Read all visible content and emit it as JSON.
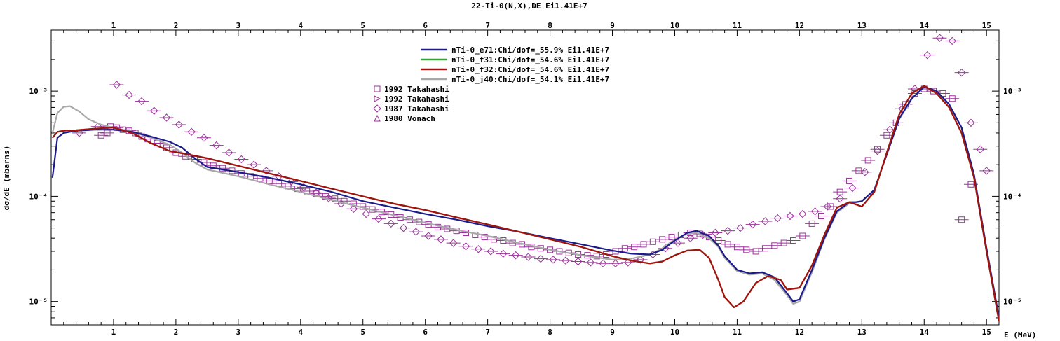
{
  "chart_data": {
    "type": "line",
    "title": "22-Ti-0(N,X),DE Ei1.41E+7",
    "xlabel": "E (MeV)",
    "ylabel": "dσ/dE (mbarns)",
    "xlim": [
      0,
      15.2
    ],
    "ylim": [
      6e-06,
      0.0038
    ],
    "yscale": "log",
    "x_ticks": [
      "1",
      "2",
      "3",
      "4",
      "5",
      "6",
      "7",
      "8",
      "9",
      "10",
      "11",
      "12",
      "13",
      "14",
      "15"
    ],
    "y_ticks": [
      "10⁻⁵",
      "10⁻⁴",
      "10⁻³"
    ],
    "legend_position": "top-center",
    "series": [
      {
        "name": "nTi-0_e71:Chi/dof=_55.9% Ei1.41E+7",
        "color": "#1a1a8c",
        "x": [
          0.02,
          0.1,
          0.2,
          0.4,
          0.7,
          1.0,
          1.3,
          1.6,
          1.9,
          2.1,
          2.3,
          2.5,
          3.0,
          3.5,
          4.0,
          4.5,
          5.0,
          5.5,
          6.0,
          6.5,
          7.0,
          7.5,
          8.0,
          8.5,
          9.0,
          9.3,
          9.6,
          9.8,
          10.0,
          10.2,
          10.35,
          10.55,
          10.7,
          10.8,
          11.0,
          11.2,
          11.4,
          11.6,
          11.8,
          11.9,
          12.0,
          12.2,
          12.4,
          12.6,
          12.8,
          12.9,
          13.0,
          13.2,
          13.4,
          13.6,
          13.8,
          14.0,
          14.2,
          14.4,
          14.6,
          14.8,
          15.0,
          15.2
        ],
        "values": [
          0.00015,
          0.00036,
          0.0004,
          0.00042,
          0.00043,
          0.00043,
          0.00041,
          0.00037,
          0.00033,
          0.00029,
          0.00023,
          0.00019,
          0.00017,
          0.00015,
          0.00013,
          0.00011,
          9e-05,
          7.8e-05,
          6.8e-05,
          6e-05,
          5.2e-05,
          4.6e-05,
          4e-05,
          3.5e-05,
          3.05e-05,
          2.85e-05,
          2.8e-05,
          3.1e-05,
          3.8e-05,
          4.5e-05,
          4.7e-05,
          4.2e-05,
          3.4e-05,
          2.7e-05,
          2e-05,
          1.85e-05,
          1.9e-05,
          1.7e-05,
          1.2e-05,
          1e-05,
          1.05e-05,
          2e-05,
          4e-05,
          7.2e-05,
          8.8e-05,
          8.8e-05,
          9e-05,
          0.000115,
          0.00025,
          0.00055,
          0.00085,
          0.0011,
          0.001,
          0.00075,
          0.00045,
          0.00016,
          3.2e-05,
          7e-06
        ]
      },
      {
        "name": "nTi-0_f31:Chi/dof=_54.6% Ei1.41E+7",
        "color": "#2ea32e",
        "x": [
          0.02,
          0.1,
          0.2,
          0.4,
          0.7,
          1.0,
          1.3,
          1.6,
          1.9,
          2.2,
          2.5,
          3.0,
          3.5,
          4.0,
          4.5,
          5.0,
          5.5,
          6.0,
          6.5,
          7.0,
          7.5,
          8.0,
          8.5,
          9.0,
          9.3,
          9.6,
          9.8,
          10.0,
          10.2,
          10.4,
          10.55,
          10.7,
          10.8,
          10.95,
          11.1,
          11.3,
          11.5,
          11.7,
          11.8,
          12.0,
          12.2,
          12.4,
          12.6,
          12.8,
          13.0,
          13.2,
          13.4,
          13.6,
          13.8,
          14.0,
          14.2,
          14.4,
          14.6,
          14.8,
          15.0,
          15.2
        ],
        "values": [
          0.00036,
          0.00041,
          0.00042,
          0.000425,
          0.00044,
          0.00045,
          0.0004,
          0.00032,
          0.00027,
          0.00025,
          0.00023,
          0.000195,
          0.000165,
          0.00014,
          0.000118,
          0.0001,
          8.5e-05,
          7.4e-05,
          6.3e-05,
          5.4e-05,
          4.6e-05,
          3.9e-05,
          3.3e-05,
          2.7e-05,
          2.45e-05,
          2.3e-05,
          2.4e-05,
          2.75e-05,
          3.05e-05,
          3.1e-05,
          2.6e-05,
          1.6e-05,
          1.1e-05,
          8.8e-06,
          1e-05,
          1.5e-05,
          1.75e-05,
          1.6e-05,
          1.3e-05,
          1.35e-05,
          2.2e-05,
          4.3e-05,
          7.8e-05,
          8.8e-05,
          8e-05,
          0.00011,
          0.00026,
          0.0006,
          0.00095,
          0.00112,
          0.00095,
          0.0007,
          0.0004,
          0.00015,
          3e-05,
          6.5e-06
        ]
      },
      {
        "name": "nTi-0_f32:Chi/dof=_54.6% Ei1.41E+7",
        "color": "#a80f0f",
        "x": [
          0.02,
          0.1,
          0.2,
          0.4,
          0.7,
          1.0,
          1.3,
          1.6,
          1.9,
          2.2,
          2.5,
          3.0,
          3.5,
          4.0,
          4.5,
          5.0,
          5.5,
          6.0,
          6.5,
          7.0,
          7.5,
          8.0,
          8.5,
          9.0,
          9.3,
          9.6,
          9.8,
          10.0,
          10.2,
          10.4,
          10.55,
          10.7,
          10.8,
          10.95,
          11.1,
          11.3,
          11.5,
          11.7,
          11.8,
          12.0,
          12.2,
          12.4,
          12.6,
          12.8,
          13.0,
          13.2,
          13.4,
          13.6,
          13.8,
          14.0,
          14.2,
          14.4,
          14.6,
          14.8,
          15.0,
          15.2
        ],
        "values": [
          0.00036,
          0.00041,
          0.00042,
          0.000425,
          0.00044,
          0.00045,
          0.0004,
          0.00032,
          0.00027,
          0.00025,
          0.00023,
          0.000195,
          0.000165,
          0.00014,
          0.000118,
          0.0001,
          8.5e-05,
          7.4e-05,
          6.3e-05,
          5.4e-05,
          4.6e-05,
          3.9e-05,
          3.3e-05,
          2.7e-05,
          2.45e-05,
          2.3e-05,
          2.4e-05,
          2.75e-05,
          3.05e-05,
          3.1e-05,
          2.6e-05,
          1.6e-05,
          1.1e-05,
          8.8e-06,
          1e-05,
          1.5e-05,
          1.75e-05,
          1.6e-05,
          1.3e-05,
          1.35e-05,
          2.2e-05,
          4.3e-05,
          7.8e-05,
          8.8e-05,
          8e-05,
          0.00011,
          0.00026,
          0.0006,
          0.00095,
          0.00112,
          0.00095,
          0.0007,
          0.0004,
          0.00015,
          3e-05,
          6.5e-06
        ]
      },
      {
        "name": "nTi-0_j40:Chi/dof=_54.1% Ei1.41E+7",
        "color": "#a8a8a8",
        "x": [
          0.02,
          0.1,
          0.2,
          0.3,
          0.45,
          0.6,
          0.8,
          1.0,
          1.3,
          1.6,
          1.9,
          2.1,
          2.3,
          2.5,
          3.0,
          3.5,
          4.0,
          4.5,
          5.0,
          5.5,
          6.0,
          6.5,
          7.0,
          7.5,
          8.0,
          8.5,
          9.0,
          9.3,
          9.6,
          9.8,
          10.0,
          10.2,
          10.35,
          10.55,
          10.7,
          10.8,
          11.0,
          11.2,
          11.4,
          11.6,
          11.8,
          11.9,
          12.0,
          12.2,
          12.4,
          12.6,
          12.8,
          12.9,
          13.0,
          13.2,
          13.4,
          13.6,
          13.8,
          14.0,
          14.2,
          14.4,
          14.6,
          14.8,
          15.0,
          15.2
        ],
        "values": [
          0.0004,
          0.00062,
          0.00071,
          0.00072,
          0.00064,
          0.00054,
          0.00048,
          0.00045,
          0.00041,
          0.00036,
          0.00031,
          0.00026,
          0.00021,
          0.00018,
          0.000155,
          0.00013,
          0.00011,
          9.2e-05,
          7.8e-05,
          6.6e-05,
          5.6e-05,
          4.8e-05,
          4.2e-05,
          3.6e-05,
          3.1e-05,
          2.75e-05,
          2.5e-05,
          2.55e-05,
          2.8e-05,
          3.2e-05,
          3.9e-05,
          4.4e-05,
          4.5e-05,
          4e-05,
          3.3e-05,
          2.6e-05,
          1.95e-05,
          1.8e-05,
          1.85e-05,
          1.6e-05,
          1.15e-05,
          9.5e-06,
          1e-05,
          1.9e-05,
          3.9e-05,
          7e-05,
          8.6e-05,
          8.7e-05,
          9e-05,
          0.000115,
          0.00025,
          0.00054,
          0.00084,
          0.0011,
          0.001,
          0.00075,
          0.00045,
          0.00016,
          3.2e-05,
          7e-06
        ]
      }
    ],
    "scatter_series": [
      {
        "name": "1992 Takahashi",
        "marker": "square",
        "color": "#993399",
        "x": [
          0.8,
          0.9,
          0.95,
          1.05,
          1.15,
          1.25,
          1.35,
          1.45,
          1.55,
          1.7,
          1.85,
          2.0,
          2.15,
          2.3,
          2.45,
          2.6,
          2.75,
          2.9,
          3.05,
          3.2,
          3.35,
          3.5,
          3.65,
          3.8,
          3.95,
          4.1,
          4.25,
          4.4,
          4.55,
          4.7,
          4.85,
          5.0,
          5.15,
          5.3,
          5.45,
          5.6,
          5.75,
          5.9,
          6.05,
          6.2,
          6.35,
          6.5,
          6.65,
          6.8,
          6.95,
          7.1,
          7.25,
          7.4,
          7.55,
          7.7,
          7.85,
          8.0,
          8.15,
          8.3,
          8.45,
          8.6,
          8.75,
          8.9,
          9.05,
          9.2,
          9.35,
          9.5,
          9.65,
          9.8,
          9.95,
          10.1,
          10.25,
          10.4,
          10.55,
          10.7,
          10.85,
          11.0,
          11.15,
          11.3,
          11.45,
          11.6,
          11.75,
          11.9,
          12.05,
          12.2,
          12.35,
          12.5,
          12.65,
          12.8,
          12.95,
          13.1,
          13.25,
          13.4,
          13.55,
          13.7,
          13.85,
          14.0,
          14.15,
          14.3,
          14.45,
          14.6,
          14.75
        ],
        "values": [
          0.00038,
          0.0004,
          0.00046,
          0.00045,
          0.00043,
          0.00042,
          0.0004,
          0.00037,
          0.00035,
          0.00032,
          0.00029,
          0.00026,
          0.00024,
          0.000225,
          0.00021,
          0.000195,
          0.000185,
          0.000175,
          0.000165,
          0.000155,
          0.000148,
          0.00014,
          0.000132,
          0.000125,
          0.000118,
          0.000112,
          0.000106,
          0.0001,
          9.5e-05,
          9e-05,
          8.5e-05,
          8e-05,
          7.5e-05,
          7.1e-05,
          6.7e-05,
          6.3e-05,
          6e-05,
          5.7e-05,
          5.4e-05,
          5.1e-05,
          4.9e-05,
          4.7e-05,
          4.5e-05,
          4.3e-05,
          4.1e-05,
          3.9e-05,
          3.8e-05,
          3.6e-05,
          3.5e-05,
          3.3e-05,
          3.2e-05,
          3.1e-05,
          3e-05,
          2.9e-05,
          2.8e-05,
          2.75e-05,
          2.7e-05,
          2.8e-05,
          3e-05,
          3.2e-05,
          3.3e-05,
          3.5e-05,
          3.7e-05,
          3.9e-05,
          4.1e-05,
          4.3e-05,
          4.5e-05,
          4.4e-05,
          4.1e-05,
          3.8e-05,
          3.5e-05,
          3.3e-05,
          3.1e-05,
          3e-05,
          3.2e-05,
          3.4e-05,
          3.6e-05,
          3.8e-05,
          4.2e-05,
          5.5e-05,
          6.5e-05,
          8e-05,
          0.00011,
          0.00014,
          0.000175,
          0.00022,
          0.00028,
          0.00038,
          0.0005,
          0.00075,
          0.00095,
          0.00105,
          0.001,
          0.00095,
          0.00085,
          6e-05,
          0.00013
        ]
      },
      {
        "name": "1992 Takahashi",
        "marker": "triangle-right",
        "color": "#993399",
        "x": [],
        "values": []
      },
      {
        "name": "1987 Takahashi",
        "marker": "diamond",
        "color": "#993399",
        "x": [
          0.45,
          0.75,
          1.05,
          1.25,
          1.45,
          1.65,
          1.85,
          2.05,
          2.25,
          2.45,
          2.65,
          2.85,
          3.05,
          3.25,
          3.45,
          3.65,
          3.85,
          4.05,
          4.25,
          4.45,
          4.65,
          4.85,
          5.05,
          5.25,
          5.45,
          5.65,
          5.85,
          6.05,
          6.25,
          6.45,
          6.65,
          6.85,
          7.05,
          7.25,
          7.45,
          7.65,
          7.85,
          8.05,
          8.25,
          8.45,
          8.65,
          8.85,
          9.05,
          9.25,
          9.45,
          9.65,
          9.85,
          10.05,
          10.25,
          10.45,
          10.65,
          10.85,
          11.05,
          11.25,
          11.45,
          11.65,
          11.85,
          12.05,
          12.25,
          12.45,
          12.65,
          12.85,
          13.05,
          13.25,
          13.45,
          13.65,
          13.85,
          14.05,
          14.25,
          14.45,
          14.6,
          14.75,
          14.9,
          15.0
        ],
        "values": [
          0.0004,
          0.00046,
          0.00115,
          0.00092,
          0.0008,
          0.00065,
          0.00056,
          0.00048,
          0.00041,
          0.00036,
          0.000305,
          0.00026,
          0.000225,
          0.0002,
          0.000175,
          0.000155,
          0.000138,
          0.000122,
          0.000108,
          9.6e-05,
          8.5e-05,
          7.6e-05,
          6.8e-05,
          6.1e-05,
          5.5e-05,
          5e-05,
          4.6e-05,
          4.2e-05,
          3.9e-05,
          3.6e-05,
          3.35e-05,
          3.15e-05,
          3e-05,
          2.85e-05,
          2.75e-05,
          2.65e-05,
          2.55e-05,
          2.5e-05,
          2.45e-05,
          2.4e-05,
          2.35e-05,
          2.3e-05,
          2.3e-05,
          2.35e-05,
          2.5e-05,
          2.8e-05,
          3.2e-05,
          3.6e-05,
          4e-05,
          4.3e-05,
          4.5e-05,
          4.7e-05,
          5e-05,
          5.4e-05,
          5.8e-05,
          6.2e-05,
          6.5e-05,
          6.8e-05,
          7.2e-05,
          8e-05,
          9.5e-05,
          0.00012,
          0.00017,
          0.00027,
          0.00043,
          0.00068,
          0.00105,
          0.0022,
          0.0032,
          0.003,
          0.0015,
          0.0005,
          0.00028,
          0.000175
        ]
      },
      {
        "name": "1980 Vonach",
        "marker": "triangle-up",
        "color": "#993399",
        "x": [],
        "values": []
      }
    ]
  }
}
